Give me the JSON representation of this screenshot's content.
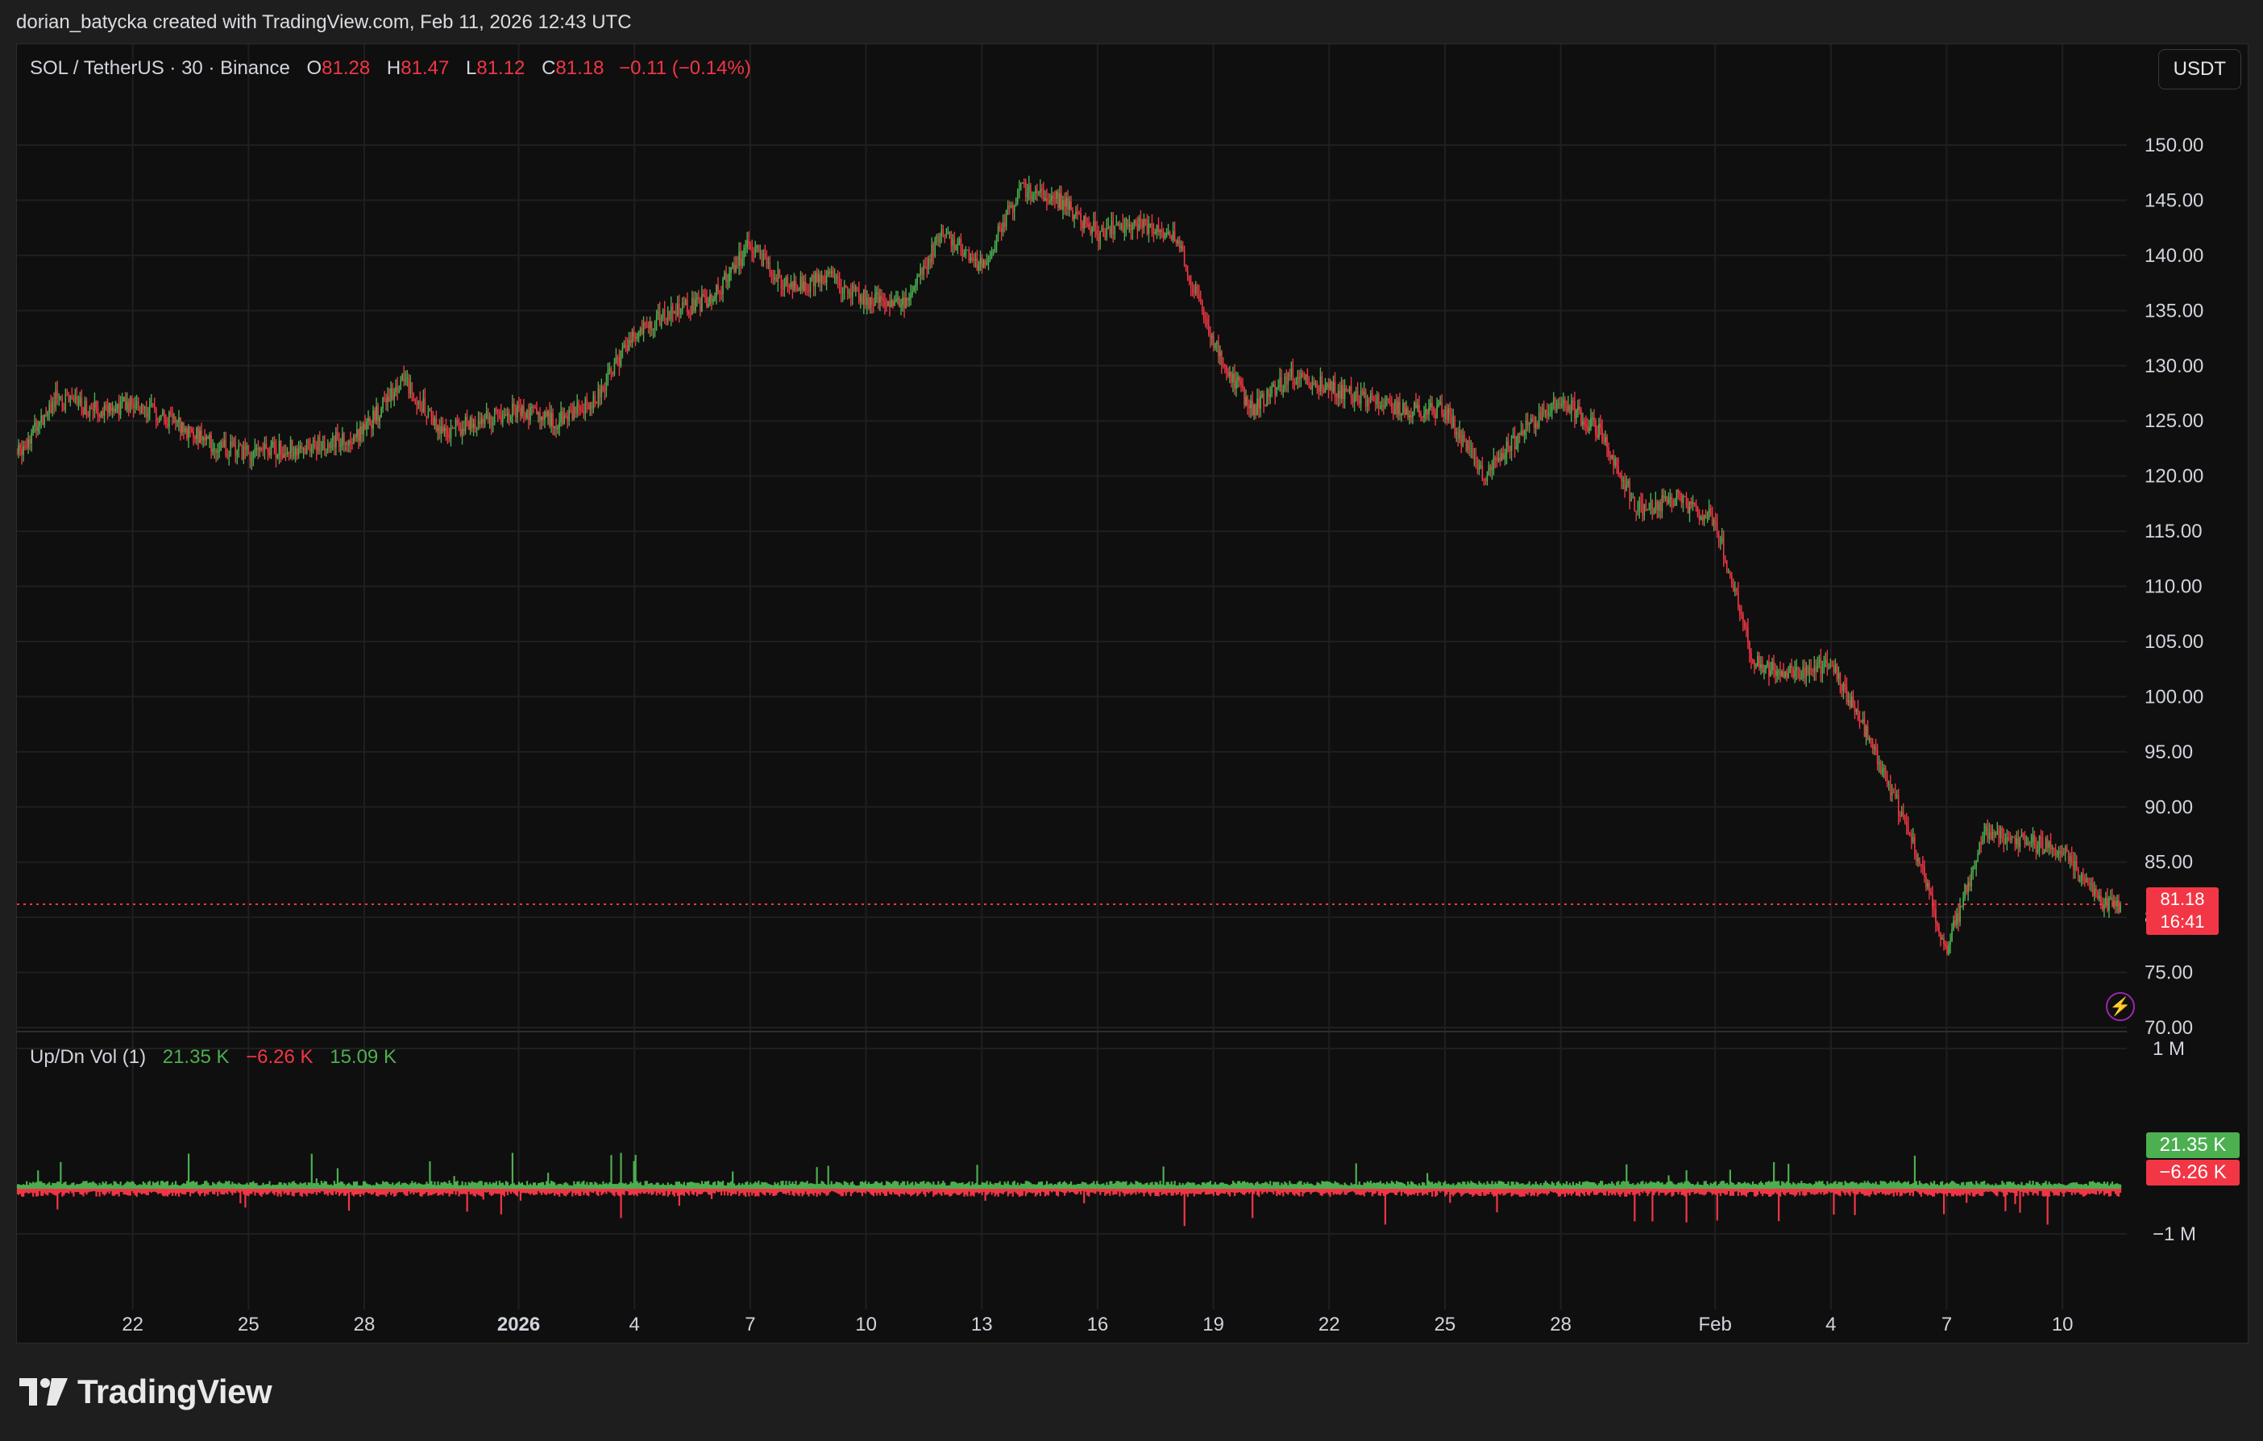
{
  "header": {
    "attribution": "dorian_batycka created with TradingView.com, Feb 11, 2026 12:43 UTC"
  },
  "legend": {
    "symbol": "SOL / TetherUS · 30 · Binance",
    "o_label": "O",
    "o_value": "81.28",
    "h_label": "H",
    "h_value": "81.47",
    "l_label": "L",
    "l_value": "81.12",
    "c_label": "C",
    "c_value": "81.18",
    "change": "−0.11 (−0.14%)"
  },
  "currency_button": "USDT",
  "price_badge": {
    "price": "81.18",
    "countdown": "16:41"
  },
  "volume_legend": {
    "name": "Up/Dn Vol (1)",
    "up": "21.35 K",
    "down": "−6.26 K",
    "delta": "15.09 K"
  },
  "volume_badges": {
    "up": "21.35 K",
    "down": "−6.26 K"
  },
  "volume_axis": [
    "1 M",
    "−1 M"
  ],
  "footer": {
    "brand": "TradingView"
  },
  "colors": {
    "up": "#4caf50",
    "down": "#f23645",
    "grid": "#1f1f1f",
    "background": "#0f0f0f"
  },
  "icons": {
    "alert": "lightning-icon",
    "logo": "tradingview-logo-icon"
  },
  "chart_data": {
    "type": "line",
    "subtype": "candlestick",
    "symbol": "SOL/USDT",
    "interval": "30",
    "ylim": [
      70,
      152
    ],
    "y_ticks": [
      "150.00",
      "145.00",
      "140.00",
      "135.00",
      "130.00",
      "125.00",
      "120.00",
      "115.00",
      "110.00",
      "105.00",
      "100.00",
      "95.00",
      "90.00",
      "85.00",
      "80.00",
      "75.00",
      "70.00"
    ],
    "x_ticks": [
      "22",
      "25",
      "28",
      "2026",
      "4",
      "7",
      "10",
      "13",
      "16",
      "19",
      "22",
      "25",
      "28",
      "Feb",
      "4",
      "7",
      "10"
    ],
    "x_range": [
      "2025-12-19",
      "2026-02-11"
    ],
    "last_price": 81.18,
    "series": [
      {
        "name": "SOL / TetherUS",
        "x": [
          "2025-12-19",
          "2025-12-20",
          "2025-12-21",
          "2025-12-22",
          "2025-12-23",
          "2025-12-24",
          "2025-12-25",
          "2025-12-26",
          "2025-12-27",
          "2025-12-28",
          "2025-12-29",
          "2025-12-30",
          "2025-12-31",
          "2026-01-01",
          "2026-01-02",
          "2026-01-03",
          "2026-01-04",
          "2026-01-05",
          "2026-01-06",
          "2026-01-07",
          "2026-01-08",
          "2026-01-09",
          "2026-01-10",
          "2026-01-11",
          "2026-01-12",
          "2026-01-13",
          "2026-01-14",
          "2026-01-15",
          "2026-01-16",
          "2026-01-17",
          "2026-01-18",
          "2026-01-19",
          "2026-01-20",
          "2026-01-21",
          "2026-01-22",
          "2026-01-23",
          "2026-01-24",
          "2026-01-25",
          "2026-01-26",
          "2026-01-27",
          "2026-01-28",
          "2026-01-29",
          "2026-01-30",
          "2026-01-31",
          "2026-02-01",
          "2026-02-02",
          "2026-02-03",
          "2026-02-04",
          "2026-02-05",
          "2026-02-06",
          "2026-02-07",
          "2026-02-08",
          "2026-02-09",
          "2026-02-10",
          "2026-02-11"
        ],
        "values": [
          122,
          127,
          126,
          126.5,
          125,
          123,
          122,
          122.5,
          123,
          124,
          129,
          124,
          125,
          126,
          125,
          127,
          133,
          135,
          136,
          141,
          137,
          138,
          136,
          136,
          142,
          139,
          146,
          145,
          142,
          143,
          142,
          132,
          126,
          129,
          128,
          127,
          126,
          126,
          120,
          124,
          127,
          124,
          117,
          118,
          116,
          103,
          102,
          103,
          96,
          88,
          77,
          88,
          87,
          86,
          81.18
        ]
      }
    ]
  }
}
